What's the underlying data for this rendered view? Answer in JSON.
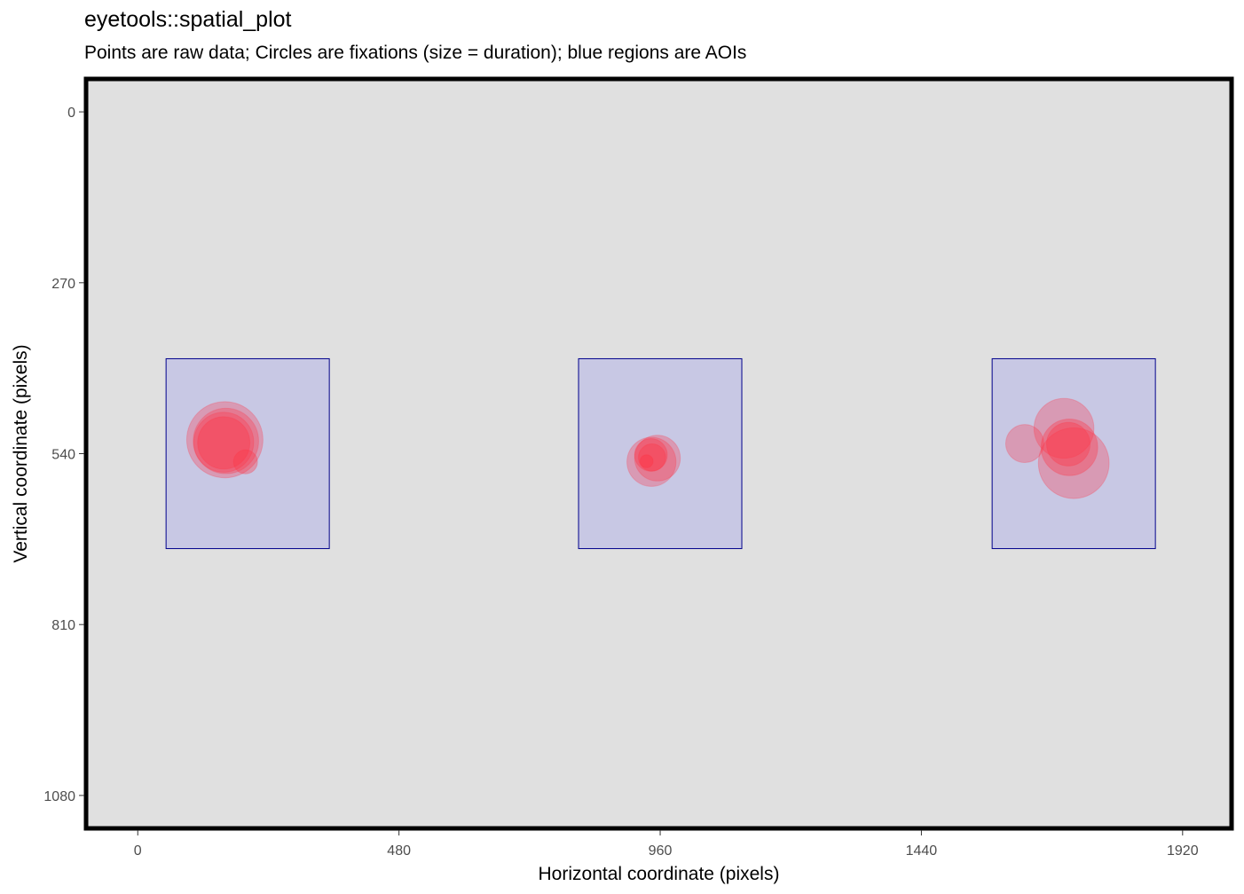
{
  "chart_data": {
    "type": "scatter",
    "title": "eyetools::spatial_plot",
    "subtitle": "Points are raw data; Circles are fixations (size = duration); blue regions are AOIs",
    "xlabel": "Horizontal coordinate (pixels)",
    "ylabel": "Vertical coordinate (pixels)",
    "xlim": [
      -95,
      2010
    ],
    "ylim": [
      -52,
      1132
    ],
    "y_reversed": true,
    "x_ticks": [
      0,
      480,
      960,
      1440,
      1920
    ],
    "x_tick_labels": [
      "0",
      "480",
      "960",
      "1440",
      "1920"
    ],
    "y_ticks": [
      0,
      270,
      540,
      810,
      1080
    ],
    "y_tick_labels": [
      "0",
      "270",
      "540",
      "810",
      "1080"
    ],
    "grid": false,
    "legend": "none",
    "colors": {
      "panel_background": "#e0e0e0",
      "panel_border": "#000000",
      "aoi_fill": "#c8c8e4",
      "aoi_stroke": "#00008b",
      "fixation": "#ff3344"
    },
    "aois": [
      {
        "x0": 52,
        "x1": 352,
        "y0": 390,
        "y1": 690
      },
      {
        "x0": 810,
        "x1": 1110,
        "y0": 390,
        "y1": 690
      },
      {
        "x0": 1570,
        "x1": 1870,
        "y0": 390,
        "y1": 690
      }
    ],
    "fixations": [
      {
        "x": 160,
        "y": 518,
        "r": 70,
        "opacity": 0.3
      },
      {
        "x": 162,
        "y": 520,
        "r": 60,
        "opacity": 0.3
      },
      {
        "x": 158,
        "y": 522,
        "r": 55,
        "opacity": 0.3
      },
      {
        "x": 158,
        "y": 523,
        "r": 48,
        "opacity": 0.35
      },
      {
        "x": 198,
        "y": 553,
        "r": 22,
        "opacity": 0.35
      },
      {
        "x": 955,
        "y": 547,
        "r": 42,
        "opacity": 0.3
      },
      {
        "x": 944,
        "y": 553,
        "r": 45,
        "opacity": 0.3
      },
      {
        "x": 943,
        "y": 542,
        "r": 30,
        "opacity": 0.35
      },
      {
        "x": 945,
        "y": 546,
        "r": 25,
        "opacity": 0.35
      },
      {
        "x": 935,
        "y": 552,
        "r": 12,
        "opacity": 0.4
      },
      {
        "x": 1630,
        "y": 524,
        "r": 35,
        "opacity": 0.3
      },
      {
        "x": 1702,
        "y": 500,
        "r": 55,
        "opacity": 0.3
      },
      {
        "x": 1720,
        "y": 555,
        "r": 65,
        "opacity": 0.3
      },
      {
        "x": 1712,
        "y": 530,
        "r": 52,
        "opacity": 0.35
      },
      {
        "x": 1710,
        "y": 525,
        "r": 40,
        "opacity": 0.35
      }
    ]
  }
}
